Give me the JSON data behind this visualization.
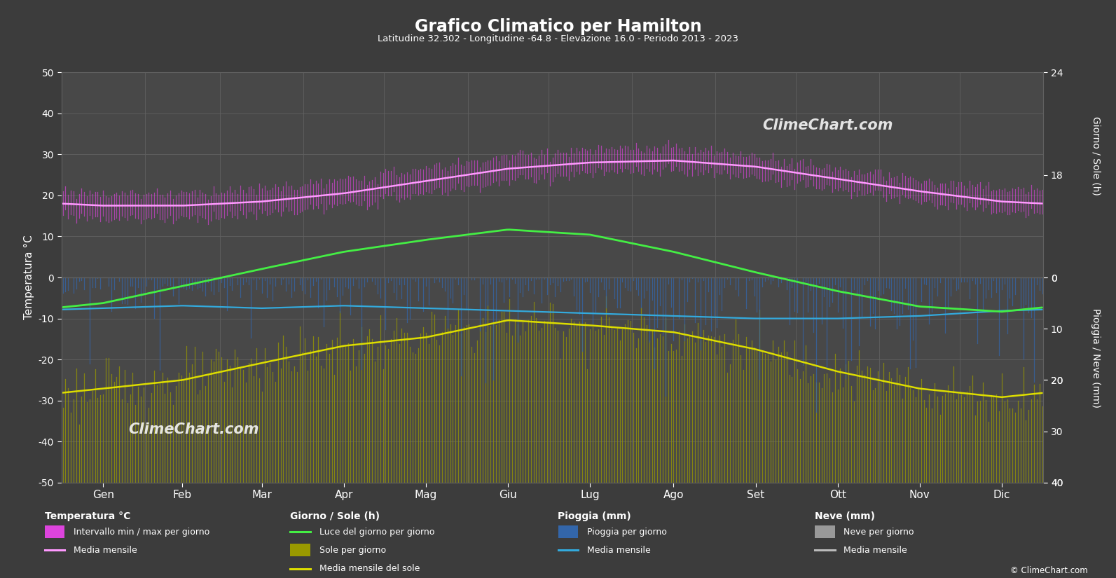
{
  "title": "Grafico Climatico per Hamilton",
  "subtitle": "Latitudine 32.302 - Longitudine -64.8 - Elevazione 16.0 - Periodo 2013 - 2023",
  "bg_color": "#3c3c3c",
  "plot_bg_color": "#484848",
  "text_color": "#ffffff",
  "grid_color": "#606060",
  "months_labels": [
    "Gen",
    "Feb",
    "Mar",
    "Apr",
    "Mag",
    "Giu",
    "Lug",
    "Ago",
    "Set",
    "Ott",
    "Nov",
    "Dic"
  ],
  "temp_ylim_min": -50,
  "temp_ylim_max": 50,
  "sun_max": 24,
  "rain_max": 40,
  "temp_min_monthly": [
    14.5,
    14.5,
    15.5,
    17.5,
    20.5,
    23.5,
    25.5,
    26.0,
    24.5,
    21.5,
    18.5,
    16.0
  ],
  "temp_max_monthly": [
    20.5,
    20.5,
    21.5,
    23.5,
    26.5,
    29.5,
    31.0,
    31.5,
    29.5,
    26.5,
    23.5,
    21.5
  ],
  "temp_mean_monthly": [
    17.5,
    17.5,
    18.5,
    20.5,
    23.5,
    26.5,
    28.0,
    28.5,
    27.0,
    24.0,
    21.0,
    18.5
  ],
  "daylight_hours_monthly": [
    10.5,
    11.5,
    12.5,
    13.5,
    14.2,
    14.8,
    14.5,
    13.5,
    12.3,
    11.2,
    10.3,
    10.0
  ],
  "sunshine_hours_monthly": [
    5.5,
    6.0,
    7.0,
    8.0,
    8.5,
    9.5,
    9.2,
    8.8,
    7.8,
    6.5,
    5.5,
    5.0
  ],
  "sunshine_mean_monthly": [
    5.5,
    6.0,
    7.0,
    8.0,
    8.5,
    9.5,
    9.2,
    8.8,
    7.8,
    6.5,
    5.5,
    5.0
  ],
  "rain_daily_mean_mm": [
    5.5,
    5.0,
    5.5,
    5.0,
    5.5,
    6.0,
    6.5,
    7.0,
    7.5,
    7.5,
    7.0,
    6.0
  ],
  "rain_mean_monthly_mm": [
    6.0,
    5.5,
    6.0,
    5.5,
    6.0,
    6.5,
    7.0,
    7.5,
    8.0,
    8.0,
    7.5,
    6.5
  ],
  "colors": {
    "temp_range": "#dd44dd",
    "temp_mean": "#ff99ff",
    "daylight": "#44ee44",
    "sunshine_bar": "#999900",
    "sunshine_mean": "#dddd00",
    "rain_bar": "#3366aa",
    "rain_mean": "#33aadd",
    "snow_bar": "#999999",
    "snow_mean": "#bbbbbb"
  },
  "days_per_month": [
    31,
    28,
    31,
    30,
    31,
    30,
    31,
    31,
    30,
    31,
    30,
    31
  ]
}
